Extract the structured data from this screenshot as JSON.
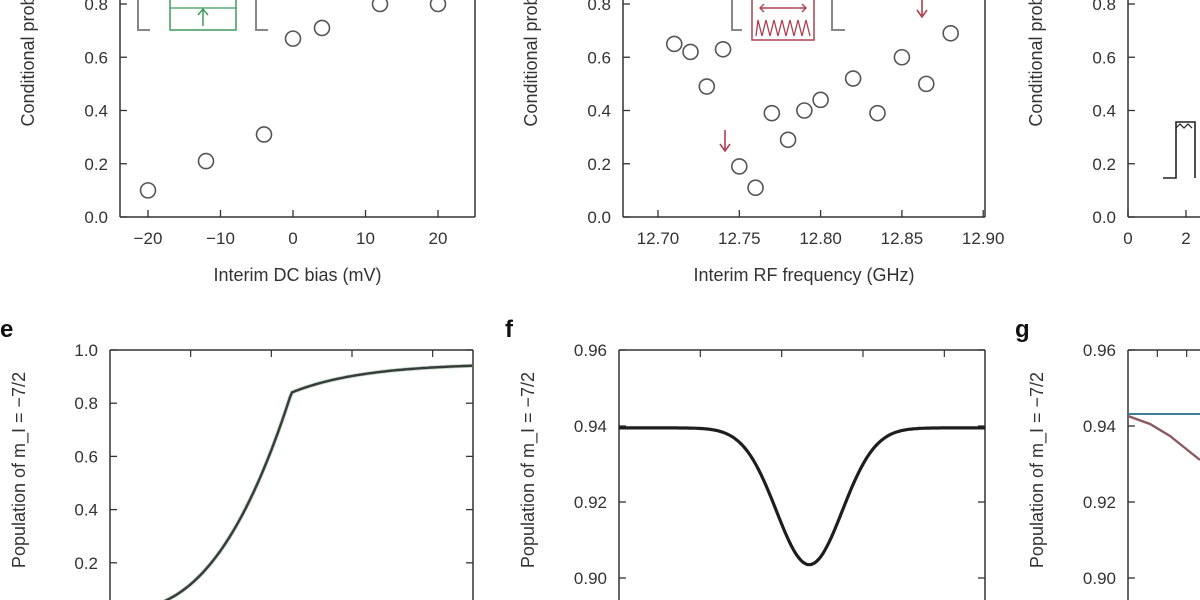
{
  "colors": {
    "axis": "#333333",
    "marker": "#555555",
    "curve": "#3a3a3a",
    "green": "#3f9a5a",
    "red": "#b04050",
    "teal": "#3d7f9a"
  },
  "chart_data": [
    {
      "id": "a",
      "type": "scatter",
      "xlabel": "Interim DC bias (mV)",
      "ylabel": "Conditional prob. P",
      "xlim": [
        -25,
        25
      ],
      "ylim": [
        0,
        0.8
      ],
      "xticks": [
        "−20",
        "−10",
        "0",
        "10",
        "20"
      ],
      "yticks": [
        "0.0",
        "0.2",
        "0.4",
        "0.6",
        "0.8"
      ],
      "points": [
        [
          -20,
          0.1
        ],
        [
          -12,
          0.21
        ],
        [
          -4,
          0.31
        ],
        [
          0,
          0.67
        ],
        [
          4,
          0.71
        ],
        [
          12,
          0.8
        ],
        [
          20,
          0.8
        ]
      ]
    },
    {
      "id": "b",
      "type": "scatter",
      "xlabel": "Interim RF frequency (GHz)",
      "ylabel": "Conditional prob. P",
      "xlim": [
        12.69,
        12.91
      ],
      "ylim": [
        0,
        0.8
      ],
      "xticks": [
        "12.70",
        "12.75",
        "12.80",
        "12.85",
        "12.90"
      ],
      "yticks": [
        "0.0",
        "0.2",
        "0.4",
        "0.6",
        "0.8"
      ],
      "points": [
        [
          12.71,
          0.65
        ],
        [
          12.72,
          0.62
        ],
        [
          12.73,
          0.49
        ],
        [
          12.74,
          0.63
        ],
        [
          12.75,
          0.19
        ],
        [
          12.76,
          0.11
        ],
        [
          12.77,
          0.39
        ],
        [
          12.78,
          0.29
        ],
        [
          12.79,
          0.4
        ],
        [
          12.8,
          0.44
        ],
        [
          12.82,
          0.52
        ],
        [
          12.835,
          0.39
        ],
        [
          12.85,
          0.6
        ],
        [
          12.865,
          0.5
        ],
        [
          12.88,
          0.69
        ]
      ]
    },
    {
      "id": "c",
      "type": "scatter",
      "xlabel": "",
      "ylabel": "Conditional prob. P",
      "xlim": [
        0,
        8
      ],
      "ylim": [
        0,
        0.8
      ],
      "xticks": [
        "0",
        "2"
      ],
      "yticks": [
        "0.0",
        "0.2",
        "0.4",
        "0.6",
        "0.8"
      ],
      "points": []
    },
    {
      "id": "e",
      "panel_label": "e",
      "type": "line",
      "ylabel": "Population of m_I = −7/2",
      "ylim": [
        0,
        1.0
      ],
      "yticks": [
        "0.2",
        "0.4",
        "0.6",
        "0.8",
        "1.0"
      ]
    },
    {
      "id": "f",
      "panel_label": "f",
      "type": "line",
      "ylabel": "Population of m_I = −7/2",
      "ylim": [
        0.88,
        0.96
      ],
      "yticks": [
        "0.90",
        "0.92",
        "0.94",
        "0.96"
      ]
    },
    {
      "id": "g",
      "panel_label": "g",
      "type": "line",
      "ylabel": "Population of m_I = −7/2",
      "ylim": [
        0.88,
        0.96
      ],
      "yticks": [
        "0.90",
        "0.92",
        "0.94",
        "0.96"
      ]
    }
  ]
}
